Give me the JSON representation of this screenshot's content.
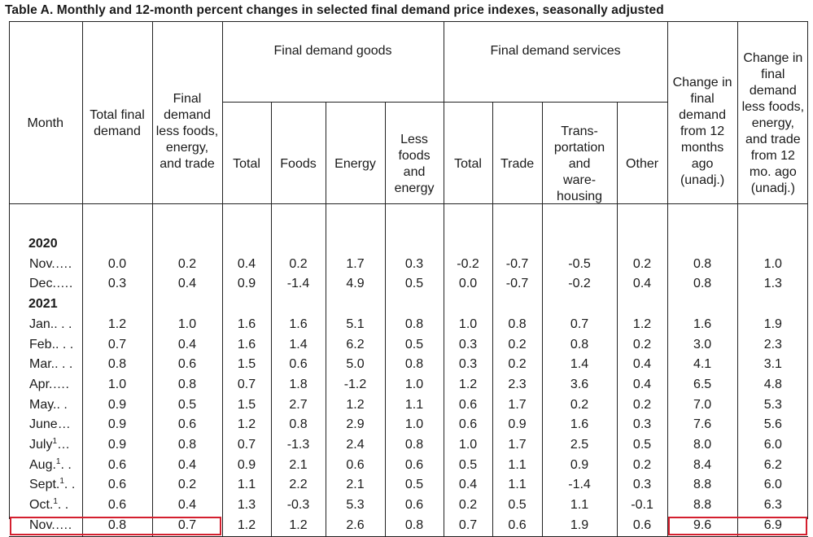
{
  "title": "Table A. Monthly and 12-month percent changes in selected final demand price indexes, seasonally adjusted",
  "headers": {
    "month": "Month",
    "total_final_demand": "Total final demand",
    "final_demand_less": "Final demand less foods, energy, and trade",
    "goods_group": "Final demand goods",
    "goods_total": "Total",
    "goods_foods": "Foods",
    "goods_energy": "Energy",
    "goods_less": "Less foods and energy",
    "services_group": "Final demand services",
    "services_total": "Total",
    "services_trade": "Trade",
    "services_transport": "Trans-portation and ware-housing",
    "services_other": "Other",
    "change_12": "Change in final demand from 12 months ago (unadj.)",
    "change_less_12": "Change in final demand less foods, energy, and trade from 12 mo. ago (unadj.)"
  },
  "years": [
    "2020",
    "2021"
  ],
  "rows": [
    {
      "month": "Nov.",
      "dots": "….",
      "sup": "",
      "v": [
        "0.0",
        "0.2",
        "0.4",
        "0.2",
        "1.7",
        "0.3",
        "-0.2",
        "-0.7",
        "-0.5",
        "0.2",
        "0.8",
        "1.0"
      ]
    },
    {
      "month": "Dec.",
      "dots": "….",
      "sup": "",
      "v": [
        "0.3",
        "0.4",
        "0.9",
        "-1.4",
        "4.9",
        "0.5",
        "0.0",
        "-0.7",
        "-0.2",
        "0.4",
        "0.8",
        "1.3"
      ]
    },
    {
      "month": "Jan.",
      "dots": ". . .",
      "sup": "",
      "v": [
        "1.2",
        "1.0",
        "1.6",
        "1.6",
        "5.1",
        "0.8",
        "1.0",
        "0.8",
        "0.7",
        "1.2",
        "1.6",
        "1.9"
      ]
    },
    {
      "month": "Feb.",
      "dots": ". . .",
      "sup": "",
      "v": [
        "0.7",
        "0.4",
        "1.6",
        "1.4",
        "6.2",
        "0.5",
        "0.3",
        "0.2",
        "0.8",
        "0.2",
        "3.0",
        "2.3"
      ]
    },
    {
      "month": "Mar.",
      "dots": ". . .",
      "sup": "",
      "v": [
        "0.8",
        "0.6",
        "1.5",
        "0.6",
        "5.0",
        "0.8",
        "0.3",
        "0.2",
        "1.4",
        "0.4",
        "4.1",
        "3.1"
      ]
    },
    {
      "month": "Apr.",
      "dots": "….",
      "sup": "",
      "v": [
        "1.0",
        "0.8",
        "0.7",
        "1.8",
        "-1.2",
        "1.0",
        "1.2",
        "2.3",
        "3.6",
        "0.4",
        "6.5",
        "4.8"
      ]
    },
    {
      "month": "May.",
      "dots": ". .",
      "sup": "",
      "v": [
        "0.9",
        "0.5",
        "1.5",
        "2.7",
        "1.2",
        "1.1",
        "0.6",
        "1.7",
        "0.2",
        "0.2",
        "7.0",
        "5.3"
      ]
    },
    {
      "month": "June",
      "dots": "…",
      "sup": "",
      "v": [
        "0.9",
        "0.6",
        "1.2",
        "0.8",
        "2.9",
        "1.0",
        "0.6",
        "0.9",
        "1.6",
        "0.3",
        "7.6",
        "5.6"
      ]
    },
    {
      "month": "July",
      "dots": "…",
      "sup": "1",
      "v": [
        "0.9",
        "0.8",
        "0.7",
        "-1.3",
        "2.4",
        "0.8",
        "1.0",
        "1.7",
        "2.5",
        "0.5",
        "8.0",
        "6.0"
      ]
    },
    {
      "month": "Aug.",
      "dots": ". .",
      "sup": "1",
      "v": [
        "0.6",
        "0.4",
        "0.9",
        "2.1",
        "0.6",
        "0.6",
        "0.5",
        "1.1",
        "0.9",
        "0.2",
        "8.4",
        "6.2"
      ]
    },
    {
      "month": "Sept.",
      "dots": ". .",
      "sup": "1",
      "v": [
        "0.6",
        "0.2",
        "1.1",
        "2.2",
        "2.1",
        "0.5",
        "0.4",
        "1.1",
        "-1.4",
        "0.3",
        "8.8",
        "6.0"
      ]
    },
    {
      "month": "Oct.",
      "dots": ". .",
      "sup": "1",
      "v": [
        "0.6",
        "0.4",
        "1.3",
        "-0.3",
        "5.3",
        "0.6",
        "0.2",
        "0.5",
        "1.1",
        "-0.1",
        "8.8",
        "6.3"
      ]
    },
    {
      "month": "Nov.",
      "dots": "….",
      "sup": "",
      "v": [
        "0.8",
        "0.7",
        "1.2",
        "1.2",
        "2.6",
        "0.8",
        "0.7",
        "0.6",
        "1.9",
        "0.6",
        "9.6",
        "6.9"
      ]
    }
  ],
  "highlight_color": "#d4202f"
}
